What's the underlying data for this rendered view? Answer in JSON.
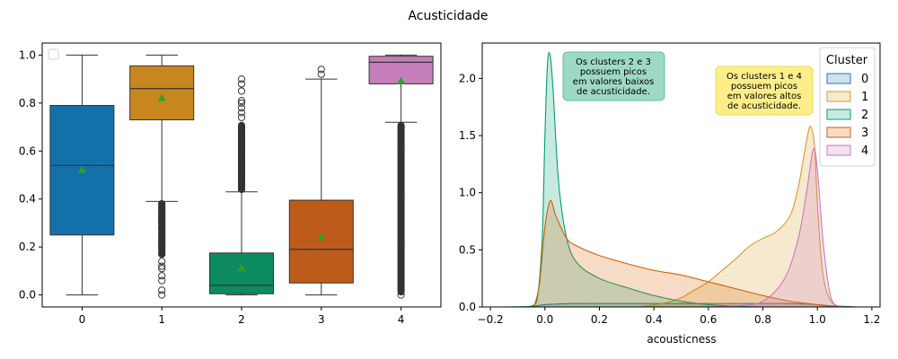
{
  "figure_title": "Acusticidade",
  "chart_data": [
    {
      "type": "box",
      "title": "",
      "xlabel": "",
      "ylabel": "",
      "categories": [
        "0",
        "1",
        "2",
        "3",
        "4"
      ],
      "ylim": [
        -0.05,
        1.05
      ],
      "yticks": [
        0.0,
        0.2,
        0.4,
        0.6,
        0.8,
        1.0
      ],
      "ytick_labels": [
        "0.0",
        "0.2",
        "0.4",
        "0.6",
        "0.8",
        "1.0"
      ],
      "legend": "empty box at upper-left",
      "boxes": [
        {
          "category": "0",
          "color": "#1470a8",
          "whisker_low": 0.0,
          "q1": 0.25,
          "median": 0.54,
          "q3": 0.79,
          "whisker_high": 1.0,
          "mean": 0.52,
          "outliers": []
        },
        {
          "category": "1",
          "color": "#c8871e",
          "whisker_low": 0.39,
          "q1": 0.73,
          "median": 0.86,
          "q3": 0.955,
          "whisker_high": 1.0,
          "mean": 0.82,
          "outliers": [
            0.0,
            0.02,
            0.06,
            0.08,
            0.11,
            0.12,
            0.14,
            0.17,
            0.2,
            0.22,
            0.25,
            0.28,
            0.3,
            0.32,
            0.34,
            0.36,
            0.38
          ],
          "outlier_band": [
            0.16,
            0.39
          ]
        },
        {
          "category": "2",
          "color": "#0d8b60",
          "whisker_low": 0.0,
          "q1": 0.005,
          "median": 0.04,
          "q3": 0.175,
          "whisker_high": 0.43,
          "mean": 0.11,
          "outliers": [
            0.44,
            0.46,
            0.5,
            0.55,
            0.6,
            0.65,
            0.7,
            0.74,
            0.76,
            0.78,
            0.8,
            0.81,
            0.85,
            0.88,
            0.9
          ],
          "outlier_band": [
            0.43,
            0.72
          ]
        },
        {
          "category": "3",
          "color": "#bc5b1a",
          "whisker_low": 0.0,
          "q1": 0.05,
          "median": 0.19,
          "q3": 0.395,
          "whisker_high": 0.9,
          "mean": 0.24,
          "outliers": [
            0.92,
            0.94
          ]
        },
        {
          "category": "4",
          "color": "#c57eb9",
          "whisker_low": 0.72,
          "q1": 0.88,
          "median": 0.97,
          "q3": 0.995,
          "whisker_high": 1.0,
          "mean": 0.89,
          "outliers": [
            0.0,
            0.2,
            0.4,
            0.6,
            0.7
          ],
          "outlier_band": [
            0.0,
            0.72
          ]
        }
      ],
      "mean_marker_color": "#2ca02c"
    },
    {
      "type": "area",
      "title": "",
      "xlabel": "acousticness",
      "ylabel": "",
      "xlim": [
        -0.23,
        1.23
      ],
      "ylim": [
        0.0,
        2.31
      ],
      "xticks": [
        -0.2,
        0.0,
        0.2,
        0.4,
        0.6,
        0.8,
        1.0,
        1.2
      ],
      "xtick_labels": [
        "−0.2",
        "0.0",
        "0.2",
        "0.4",
        "0.6",
        "0.8",
        "1.0",
        "1.2"
      ],
      "yticks": [
        0.0,
        0.5,
        1.0,
        1.5,
        2.0
      ],
      "ytick_labels": [
        "0.0",
        "0.5",
        "1.0",
        "1.5",
        "2.0"
      ],
      "legend": {
        "title": "Cluster",
        "position": "top-right",
        "entries": [
          "0",
          "1",
          "2",
          "3",
          "4"
        ]
      },
      "series": [
        {
          "name": "0",
          "color": "#1f77b4",
          "points": [
            [
              -0.15,
              0.0
            ],
            [
              -0.05,
              0.005
            ],
            [
              0.0,
              0.02
            ],
            [
              0.1,
              0.03
            ],
            [
              0.2,
              0.03
            ],
            [
              0.3,
              0.03
            ],
            [
              0.4,
              0.03
            ],
            [
              0.5,
              0.03
            ],
            [
              0.6,
              0.03
            ],
            [
              0.7,
              0.03
            ],
            [
              0.8,
              0.03
            ],
            [
              0.9,
              0.03
            ],
            [
              1.0,
              0.02
            ],
            [
              1.05,
              0.01
            ],
            [
              1.15,
              0.0
            ]
          ]
        },
        {
          "name": "1",
          "color": "#d99a2b",
          "points": [
            [
              0.35,
              0.0
            ],
            [
              0.45,
              0.04
            ],
            [
              0.5,
              0.08
            ],
            [
              0.55,
              0.15
            ],
            [
              0.6,
              0.22
            ],
            [
              0.65,
              0.32
            ],
            [
              0.7,
              0.42
            ],
            [
              0.75,
              0.53
            ],
            [
              0.8,
              0.6
            ],
            [
              0.85,
              0.66
            ],
            [
              0.9,
              0.8
            ],
            [
              0.93,
              1.05
            ],
            [
              0.96,
              1.45
            ],
            [
              0.975,
              1.58
            ],
            [
              0.99,
              1.4
            ],
            [
              1.0,
              0.9
            ],
            [
              1.02,
              0.3
            ],
            [
              1.05,
              0.05
            ],
            [
              1.1,
              0.0
            ]
          ]
        },
        {
          "name": "2",
          "color": "#029e73",
          "points": [
            [
              -0.06,
              0.0
            ],
            [
              -0.03,
              0.05
            ],
            [
              -0.01,
              0.6
            ],
            [
              0.0,
              1.5
            ],
            [
              0.01,
              2.15
            ],
            [
              0.02,
              2.19
            ],
            [
              0.03,
              1.9
            ],
            [
              0.05,
              1.1
            ],
            [
              0.08,
              0.6
            ],
            [
              0.12,
              0.38
            ],
            [
              0.2,
              0.25
            ],
            [
              0.3,
              0.17
            ],
            [
              0.4,
              0.1
            ],
            [
              0.5,
              0.05
            ],
            [
              0.6,
              0.02
            ],
            [
              0.7,
              0.008
            ],
            [
              0.8,
              0.0
            ]
          ]
        },
        {
          "name": "3",
          "color": "#d55e00",
          "points": [
            [
              -0.04,
              0.0
            ],
            [
              -0.02,
              0.2
            ],
            [
              0.0,
              0.7
            ],
            [
              0.02,
              0.93
            ],
            [
              0.04,
              0.8
            ],
            [
              0.08,
              0.6
            ],
            [
              0.12,
              0.53
            ],
            [
              0.2,
              0.45
            ],
            [
              0.3,
              0.38
            ],
            [
              0.4,
              0.32
            ],
            [
              0.5,
              0.28
            ],
            [
              0.6,
              0.22
            ],
            [
              0.7,
              0.16
            ],
            [
              0.8,
              0.1
            ],
            [
              0.9,
              0.05
            ],
            [
              1.0,
              0.02
            ],
            [
              1.05,
              0.0
            ]
          ]
        },
        {
          "name": "4",
          "color": "#cc78bc",
          "points": [
            [
              0.6,
              0.0
            ],
            [
              0.7,
              0.01
            ],
            [
              0.8,
              0.05
            ],
            [
              0.88,
              0.25
            ],
            [
              0.93,
              0.6
            ],
            [
              0.96,
              1.0
            ],
            [
              0.985,
              1.38
            ],
            [
              1.0,
              1.2
            ],
            [
              1.02,
              0.6
            ],
            [
              1.04,
              0.2
            ],
            [
              1.06,
              0.03
            ],
            [
              1.1,
              0.0
            ]
          ]
        }
      ],
      "annotations": [
        {
          "lines": [
            "Os clusters 2 e 3",
            "possuem picos",
            "em valores baixos",
            "de acusticidade."
          ],
          "bg": "#9dd9c5",
          "border": "#5fbfa0"
        },
        {
          "lines": [
            "Os clusters 1 e 4",
            "possuem picos",
            "em valores altos",
            "de acusticidade."
          ],
          "bg": "#fdee8a",
          "border": "#f0d850"
        }
      ]
    }
  ]
}
